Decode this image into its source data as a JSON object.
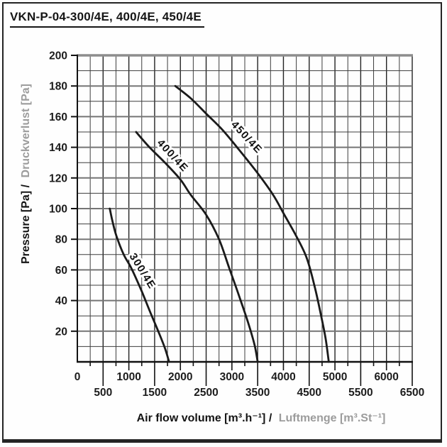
{
  "title": "VKN-P-04-300/4E, 400/4E, 450/4E",
  "chart_data": {
    "type": "line",
    "title": "VKN-P-04-300/4E, 400/4E, 450/4E",
    "xlabel_primary": "Air flow volume [m³.h⁻¹] /",
    "xlabel_secondary": "Luftmenge [m³.St⁻¹]",
    "ylabel_primary": "Pressure [Pa] /",
    "ylabel_secondary": "Druckverlust [Pa]",
    "xlim": [
      0,
      6500
    ],
    "ylim": [
      0,
      200
    ],
    "x_tick_step": 500,
    "x_grid_step": 250,
    "y_tick_step": 20,
    "y_grid_step": 10,
    "grid": true,
    "legend_position": "on-curve",
    "x_tick_labels_row1": [
      "0",
      "1000",
      "2000",
      "3000",
      "4000",
      "5000",
      "6000"
    ],
    "x_tick_labels_row2": [
      "500",
      "1500",
      "2500",
      "3500",
      "4500",
      "5500",
      "6500"
    ],
    "y_tick_labels": [
      "20",
      "40",
      "60",
      "80",
      "100",
      "120",
      "140",
      "160",
      "180",
      "200"
    ],
    "series": [
      {
        "name": "300/4E",
        "points": [
          [
            630,
            100
          ],
          [
            680,
            92
          ],
          [
            760,
            82
          ],
          [
            900,
            70
          ],
          [
            1050,
            61
          ],
          [
            1250,
            46
          ],
          [
            1420,
            32
          ],
          [
            1570,
            20
          ],
          [
            1700,
            9
          ],
          [
            1780,
            0
          ]
        ],
        "label": {
          "x": 1212,
          "y": 58,
          "angle": 58
        }
      },
      {
        "name": "400/4E",
        "points": [
          [
            1140,
            150
          ],
          [
            1400,
            140
          ],
          [
            1700,
            130
          ],
          [
            2000,
            119
          ],
          [
            2200,
            109
          ],
          [
            2500,
            96
          ],
          [
            2750,
            80
          ],
          [
            2950,
            61
          ],
          [
            3150,
            42
          ],
          [
            3320,
            25
          ],
          [
            3440,
            11
          ],
          [
            3500,
            0
          ]
        ],
        "label": {
          "x": 1804,
          "y": 133,
          "angle": 47
        }
      },
      {
        "name": "450/4E",
        "points": [
          [
            1900,
            180
          ],
          [
            2200,
            172
          ],
          [
            2500,
            162
          ],
          [
            2800,
            152
          ],
          [
            3100,
            140
          ],
          [
            3480,
            124
          ],
          [
            3800,
            109
          ],
          [
            4000,
            97
          ],
          [
            4250,
            82
          ],
          [
            4450,
            68
          ],
          [
            4600,
            50
          ],
          [
            4720,
            32
          ],
          [
            4820,
            15
          ],
          [
            4880,
            0
          ]
        ],
        "label": {
          "x": 3240,
          "y": 145,
          "angle": 47
        }
      }
    ],
    "colors": {
      "curve": "#1a1a1a",
      "grid_minor": "#3d3d3d",
      "grid_major_v": "#232323",
      "grid_major_h": "#757575",
      "plot_top_edge": "#8d8d8d",
      "axis": "#111111",
      "primary_text": "#141414",
      "secondary_text": "#9c9c9c"
    }
  }
}
